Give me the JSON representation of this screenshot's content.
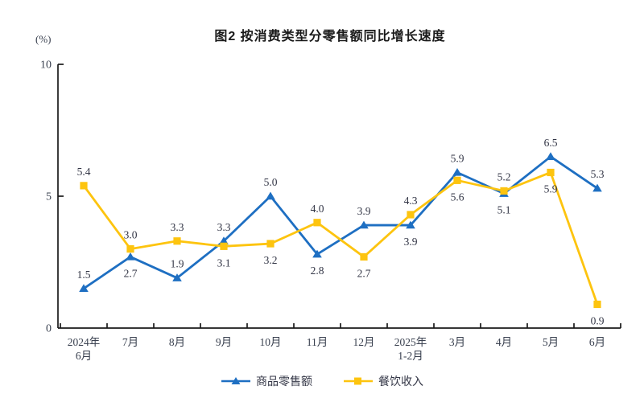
{
  "title": "图2 按消费类型分零售额同比增长速度",
  "y_axis_unit": "(%)",
  "chart_data": {
    "type": "line",
    "title": "图2 按消费类型分零售额同比增长速度",
    "ylabel": "(%)",
    "ylim": [
      0,
      10
    ],
    "y_ticks": [
      0,
      5,
      10
    ],
    "grid": false,
    "legend_position": "bottom",
    "categories": [
      "2024年\n6月",
      "7月",
      "8月",
      "9月",
      "10月",
      "11月",
      "12月",
      "2025年\n1-2月",
      "3月",
      "4月",
      "5月",
      "6月"
    ],
    "series": [
      {
        "name": "商品零售额",
        "color": "#1e6fc2",
        "marker": "triangle",
        "values": [
          1.5,
          2.7,
          1.9,
          3.3,
          5.0,
          2.8,
          3.9,
          3.9,
          5.9,
          5.1,
          6.5,
          5.3
        ],
        "label_side": [
          "above",
          "below",
          "above",
          "above",
          "above",
          "below",
          "above",
          "below",
          "above",
          "below",
          "above",
          "above"
        ]
      },
      {
        "name": "餐饮收入",
        "color": "#fdc40f",
        "marker": "square",
        "values": [
          5.4,
          3.0,
          3.3,
          3.1,
          3.2,
          4.0,
          2.7,
          4.3,
          5.6,
          5.2,
          5.9,
          0.9
        ],
        "label_side": [
          "above",
          "above",
          "above",
          "below",
          "below",
          "above",
          "below",
          "above",
          "below",
          "above",
          "below",
          "below"
        ]
      }
    ]
  }
}
